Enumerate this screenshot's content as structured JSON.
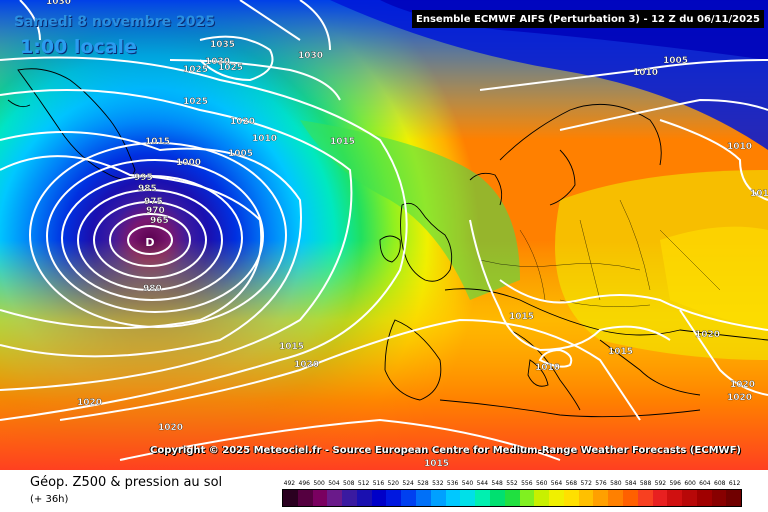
{
  "header": {
    "date": "Samedi 8 novembre 2025",
    "local_time": "1:00 locale",
    "model_run": "Ensemble ECMWF AIFS  (Perturbation 3)  -  12 Z du 06/11/2025"
  },
  "copyright": "Copyright © 2025 Meteociel.fr - Source European Centre for Medium-Range Weather Forecasts (ECMWF)",
  "footer": {
    "parameter": "Géop. Z500 & pression au sol",
    "lead_time": "(+ 36h)"
  },
  "legend": {
    "values": [
      "492",
      "496",
      "500",
      "504",
      "508",
      "512",
      "516",
      "520",
      "524",
      "528",
      "532",
      "536",
      "540",
      "544",
      "548",
      "552",
      "556",
      "560",
      "564",
      "568",
      "572",
      "576",
      "580",
      "584",
      "588",
      "592",
      "596",
      "600",
      "604",
      "608",
      "612"
    ],
    "colors": [
      "#2a0020",
      "#550040",
      "#7a0060",
      "#6a1a8a",
      "#3a1aa0",
      "#1a10b0",
      "#0000c8",
      "#0018e0",
      "#0040f0",
      "#0070f8",
      "#00a0ff",
      "#00c8ff",
      "#00e0e8",
      "#00f0b0",
      "#00e070",
      "#20e040",
      "#80f020",
      "#c8f000",
      "#f0f000",
      "#ffe000",
      "#ffc000",
      "#ffa000",
      "#ff8000",
      "#ff6000",
      "#f84020",
      "#e82020",
      "#d01010",
      "#b80808",
      "#a00000",
      "#880000",
      "#700000"
    ]
  },
  "isobars": [
    "1030",
    "1035",
    "1030",
    "1025",
    "1030",
    "1025",
    "1025",
    "1020",
    "1015",
    "1010",
    "1015",
    "1005",
    "1000",
    "995",
    "985",
    "975",
    "970",
    "965",
    "980",
    "1005",
    "1010",
    "1010",
    "1010",
    "1015",
    "1010",
    "1020",
    "1015",
    "1020",
    "1015",
    "1020",
    "1020",
    "1020",
    "1020",
    "1015",
    "1010",
    "1015"
  ],
  "low_marker": "D"
}
